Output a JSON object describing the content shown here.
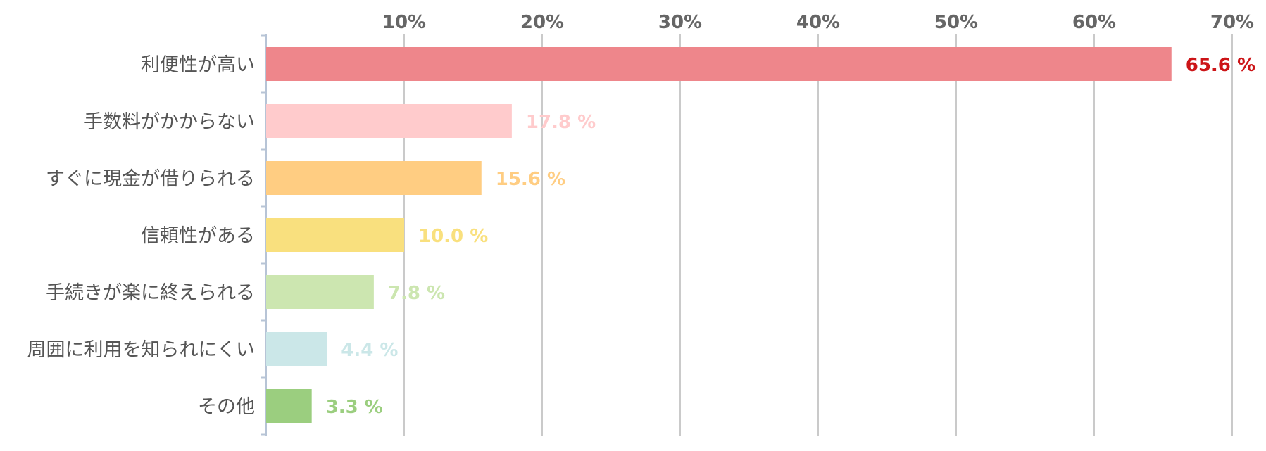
{
  "chart_data": {
    "type": "bar",
    "orientation": "horizontal",
    "categories": [
      "利便性が高い",
      "手数料がかからない",
      "すぐに現金が借りられる",
      "信頼性がある",
      "手続きが楽に終えられる",
      "周囲に利用を知られにくい",
      "その他"
    ],
    "values": [
      65.6,
      17.8,
      15.6,
      10.0,
      7.8,
      4.4,
      3.3
    ],
    "value_labels": [
      "65.6 %",
      "17.8 %",
      "15.6 %",
      "10.0 %",
      "7.8 %",
      "4.4 %",
      "3.3 %"
    ],
    "bar_colors": [
      "#ee868b",
      "#ffcbcc",
      "#ffcd82",
      "#f9e07e",
      "#cce6b0",
      "#cbe7e8",
      "#9bce7f"
    ],
    "label_colors": [
      "#cc1417",
      "#ffcbcc",
      "#ffcd82",
      "#f9e07e",
      "#cce6b0",
      "#cbe7e8",
      "#9bce7f"
    ],
    "xlim": [
      0,
      70
    ],
    "x_ticks": [
      10,
      20,
      30,
      40,
      50,
      60,
      70
    ],
    "x_tick_labels": [
      "10%",
      "20%",
      "30%",
      "40%",
      "50%",
      "60%",
      "70%"
    ],
    "x_axis_position": "top",
    "grid": true
  }
}
